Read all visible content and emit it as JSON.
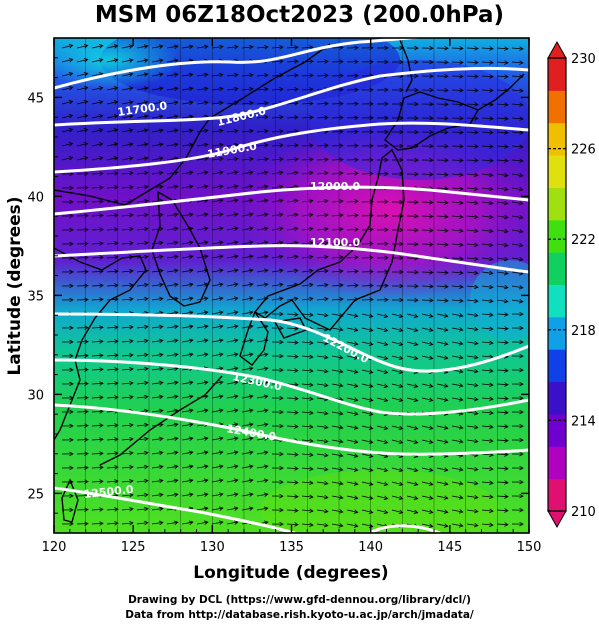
{
  "title": "MSM 06Z18Oct2023 (200.0hPa)",
  "map": {
    "xlabel": "Longitude (degrees)",
    "ylabel": "Latitude  (degrees)",
    "lon_range": [
      120,
      150
    ],
    "lat_range": [
      23,
      48
    ],
    "lon_ticks": [
      "120",
      "125",
      "130",
      "135",
      "140",
      "145",
      "150"
    ],
    "lat_ticks": [
      "25",
      "30",
      "35",
      "40",
      "45"
    ],
    "contour_labels": [
      "11700.0",
      "11800.0",
      "11900.0",
      "12000.0",
      "12100.0",
      "12200.0",
      "12300.0",
      "12400.0",
      "12500.0"
    ]
  },
  "colorbar": {
    "ticks": [
      "210",
      "214",
      "218",
      "222",
      "226",
      "230"
    ],
    "colors": [
      "#e01070",
      "#b000c0",
      "#7000d0",
      "#3a10c8",
      "#1040e8",
      "#10a0e8",
      "#10e0c0",
      "#10d060",
      "#40e010",
      "#a0e010",
      "#e0e010",
      "#f0c000",
      "#f07000",
      "#e02020"
    ]
  },
  "credits": {
    "line1": "Drawing by DCL (https://www.gfd-dennou.org/library/dcl/)",
    "line2": "Data from http://database.rish.kyoto-u.ac.jp/arch/jmadata/"
  }
}
